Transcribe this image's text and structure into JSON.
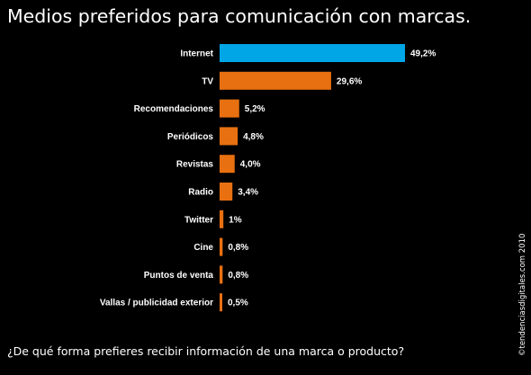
{
  "title": "Medios preferidos para comunicación con marcas.",
  "question": "¿De qué forma prefieres recibir información de una marca o producto?",
  "copyright": "©tendenciasdigitales.com 2010",
  "colors": {
    "background": "#000000",
    "highlight": "#00a6e6",
    "bar": "#e87011",
    "text": "#ffffff"
  },
  "chart_data": {
    "type": "bar",
    "orientation": "horizontal",
    "categories": [
      "Internet",
      "TV",
      "Recomendaciones",
      "Periódicos",
      "Revistas",
      "Radio",
      "Twitter",
      "Cine",
      "Puntos de venta",
      "Vallas / publicidad exterior"
    ],
    "values": [
      49.2,
      29.6,
      5.2,
      4.8,
      4.0,
      3.4,
      1,
      0.8,
      0.8,
      0.5
    ],
    "value_labels": [
      "49,2%",
      "29,6%",
      "5,2%",
      "4,8%",
      "4,0%",
      "3,4%",
      "1%",
      "0,8%",
      "0,8%",
      "0,5%"
    ],
    "highlight_index": 0,
    "title": "Medios preferidos para comunicación con marcas.",
    "xlabel": "",
    "ylabel": "",
    "grid": false,
    "legend": "none"
  }
}
